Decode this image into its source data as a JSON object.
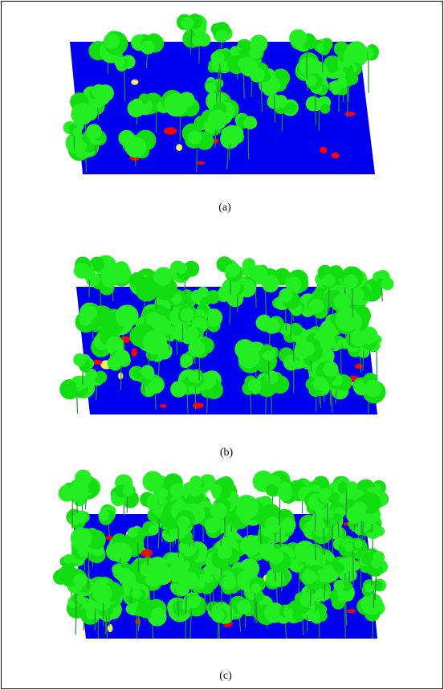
{
  "figure": {
    "captions": [
      "(a)",
      "(b)",
      "(c)"
    ]
  }
}
